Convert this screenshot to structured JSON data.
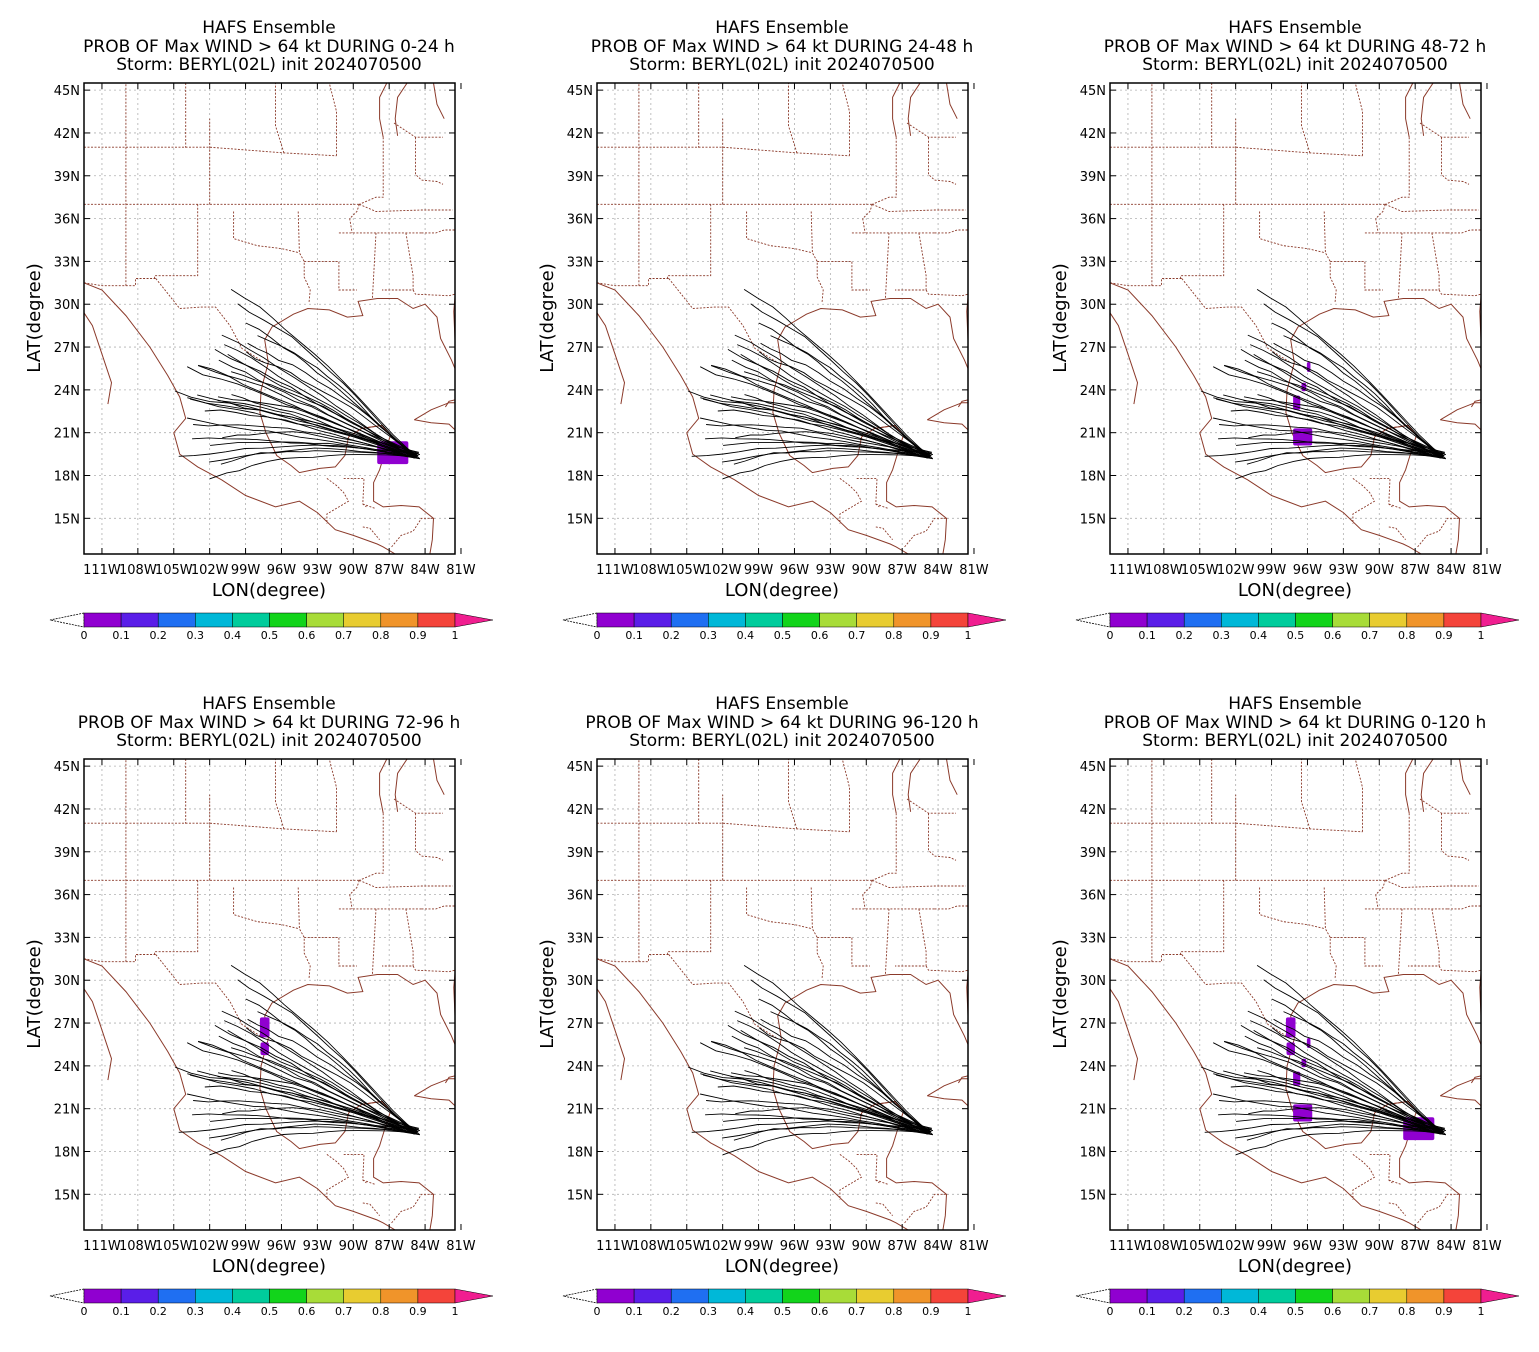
{
  "common": {
    "title_line1": "HAFS Ensemble",
    "title_line3": "Storm: BERYL(02L) init 2024070500",
    "xlabel": "LON(degree)",
    "ylabel": "LAT(degree)",
    "lat_ticks": [
      "45N",
      "42N",
      "39N",
      "36N",
      "33N",
      "30N",
      "27N",
      "24N",
      "21N",
      "18N",
      "15N"
    ],
    "lon_ticks": [
      "111W",
      "108W",
      "105W",
      "102W",
      "99W",
      "96W",
      "93W",
      "90W",
      "87W",
      "84W",
      "81W"
    ],
    "lat_range": [
      12.5,
      45.5
    ],
    "lon_range": [
      -112.5,
      -81.5
    ],
    "colorbar": {
      "labels": [
        "0",
        "0.1",
        "0.2",
        "0.3",
        "0.4",
        "0.5",
        "0.6",
        "0.7",
        "0.8",
        "0.9",
        "1"
      ],
      "colors": [
        "#9000d0",
        "#5a1ee8",
        "#1f6ff2",
        "#00b8d8",
        "#00cc9c",
        "#12d41b",
        "#a8dc38",
        "#e8cc30",
        "#f0942a",
        "#f4443a"
      ],
      "over_color": "#f01e90"
    }
  },
  "panels": [
    {
      "title_line2": "PROB OF Max WIND > 64 kt DURING  0-24 h",
      "prob_areas": [
        {
          "lon": -86.7,
          "lat": 19.6,
          "w": 2.6,
          "h": 1.6,
          "value": 0.05
        }
      ]
    },
    {
      "title_line2": "PROB OF Max WIND > 64 kt DURING 24-48 h",
      "prob_areas": []
    },
    {
      "title_line2": "PROB OF Max WIND > 64 kt DURING 48-72 h",
      "prob_areas": [
        {
          "lon": -96.4,
          "lat": 20.7,
          "w": 1.6,
          "h": 1.2,
          "value": 0.05
        },
        {
          "lon": -96.9,
          "lat": 23.1,
          "w": 0.6,
          "h": 1.0,
          "value": 0.05
        },
        {
          "lon": -96.3,
          "lat": 24.2,
          "w": 0.4,
          "h": 0.6,
          "value": 0.05
        },
        {
          "lon": -95.9,
          "lat": 25.6,
          "w": 0.3,
          "h": 0.7,
          "value": 0.05
        }
      ]
    },
    {
      "title_line2": "PROB OF Max WIND > 64 kt DURING 72-96 h",
      "prob_areas": [
        {
          "lon": -97.4,
          "lat": 26.7,
          "w": 0.8,
          "h": 1.4,
          "value": 0.05
        },
        {
          "lon": -97.4,
          "lat": 25.2,
          "w": 0.7,
          "h": 0.9,
          "value": 0.05
        }
      ]
    },
    {
      "title_line2": "PROB OF Max WIND > 64 kt DURING 96-120 h",
      "prob_areas": []
    },
    {
      "title_line2": "PROB OF Max WIND > 64 kt DURING 0-120 h",
      "prob_areas": [
        {
          "lon": -86.7,
          "lat": 19.6,
          "w": 2.6,
          "h": 1.6,
          "value": 0.05
        },
        {
          "lon": -96.4,
          "lat": 20.7,
          "w": 1.6,
          "h": 1.2,
          "value": 0.05
        },
        {
          "lon": -96.9,
          "lat": 23.1,
          "w": 0.6,
          "h": 1.0,
          "value": 0.05
        },
        {
          "lon": -96.3,
          "lat": 24.2,
          "w": 0.4,
          "h": 0.6,
          "value": 0.05
        },
        {
          "lon": -95.9,
          "lat": 25.6,
          "w": 0.3,
          "h": 0.7,
          "value": 0.05
        },
        {
          "lon": -97.4,
          "lat": 26.7,
          "w": 0.8,
          "h": 1.4,
          "value": 0.05
        },
        {
          "lon": -97.4,
          "lat": 25.2,
          "w": 0.7,
          "h": 0.9,
          "value": 0.05
        }
      ]
    }
  ]
}
